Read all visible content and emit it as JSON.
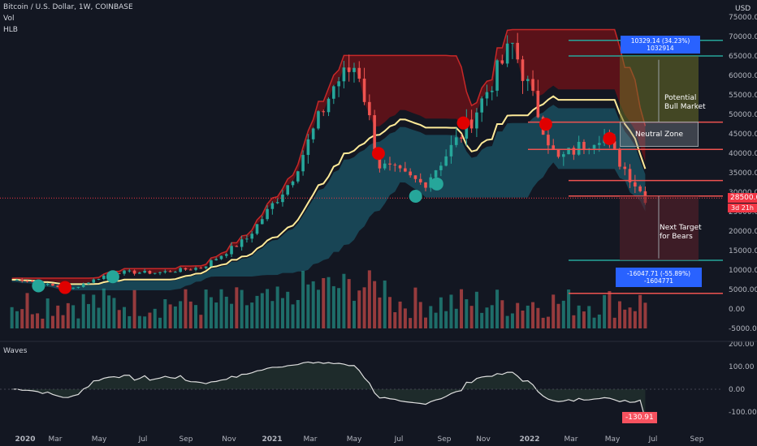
{
  "header": {
    "symbol_line": "Bitcoin / U.S. Dollar, 1W, COINBASE",
    "indicator_1": "Vol",
    "indicator_2": "HLB",
    "oscillator": "Waves",
    "currency": "USD"
  },
  "price_tag": {
    "price": "28500.00",
    "countdown": "3d 21h"
  },
  "oscillator_tag": "-130.91",
  "annotations": {
    "bull_measure": "10329.14 (34.23%) 1032914",
    "bear_measure": "-16047.71 (-55.89%) -1604771",
    "bull_label": "Potential Bull Market",
    "neutral_label": "Neutral Zone",
    "bear_label": "Next Target for Bears"
  },
  "colors": {
    "background": "#131722",
    "bull": "#26a69a",
    "bear": "#ef5350",
    "cloud_bull": "#1e6b80",
    "cloud_bear": "#8b0f14",
    "midline": "#ffeb99",
    "measure_blue": "#2962ff"
  },
  "chart_data": [
    {
      "type": "candlestick",
      "title": "Bitcoin / U.S. Dollar, 1W, COINBASE",
      "x_ticks": [
        "2020",
        "Mar",
        "May",
        "Jul",
        "Sep",
        "Nov",
        "2021",
        "Mar",
        "May",
        "Jul",
        "Sep",
        "Nov",
        "2022",
        "Mar",
        "May",
        "Jul",
        "Sep"
      ],
      "y_ticks": [
        75000,
        70000,
        65000,
        60000,
        55000,
        50000,
        45000,
        40000,
        35000,
        30000,
        25000,
        20000,
        15000,
        10000,
        5000,
        0,
        -5000
      ],
      "ylim": [
        -5000,
        75000
      ],
      "last_price": 28500,
      "horizontal_levels": [
        69000,
        65000,
        48000,
        41000,
        33000,
        29000,
        12500,
        4000
      ],
      "price_path_approx": [
        {
          "x": "2020-01",
          "y": 7500
        },
        {
          "x": "2020-03",
          "y": 5000
        },
        {
          "x": "2020-05",
          "y": 9500
        },
        {
          "x": "2020-07",
          "y": 9300
        },
        {
          "x": "2020-09",
          "y": 10700
        },
        {
          "x": "2020-11",
          "y": 18000
        },
        {
          "x": "2021-01",
          "y": 33000
        },
        {
          "x": "2021-03",
          "y": 58000
        },
        {
          "x": "2021-04",
          "y": 63000
        },
        {
          "x": "2021-05",
          "y": 37000
        },
        {
          "x": "2021-07",
          "y": 32000
        },
        {
          "x": "2021-09",
          "y": 47000
        },
        {
          "x": "2021-11",
          "y": 68000
        },
        {
          "x": "2022-01",
          "y": 38000
        },
        {
          "x": "2022-03",
          "y": 45000
        },
        {
          "x": "2022-05",
          "y": 28500
        }
      ]
    },
    {
      "type": "line",
      "title": "Waves",
      "y_ticks": [
        200,
        100,
        0,
        -100
      ],
      "ylim": [
        -140,
        200
      ],
      "last_value": -130.91
    }
  ]
}
